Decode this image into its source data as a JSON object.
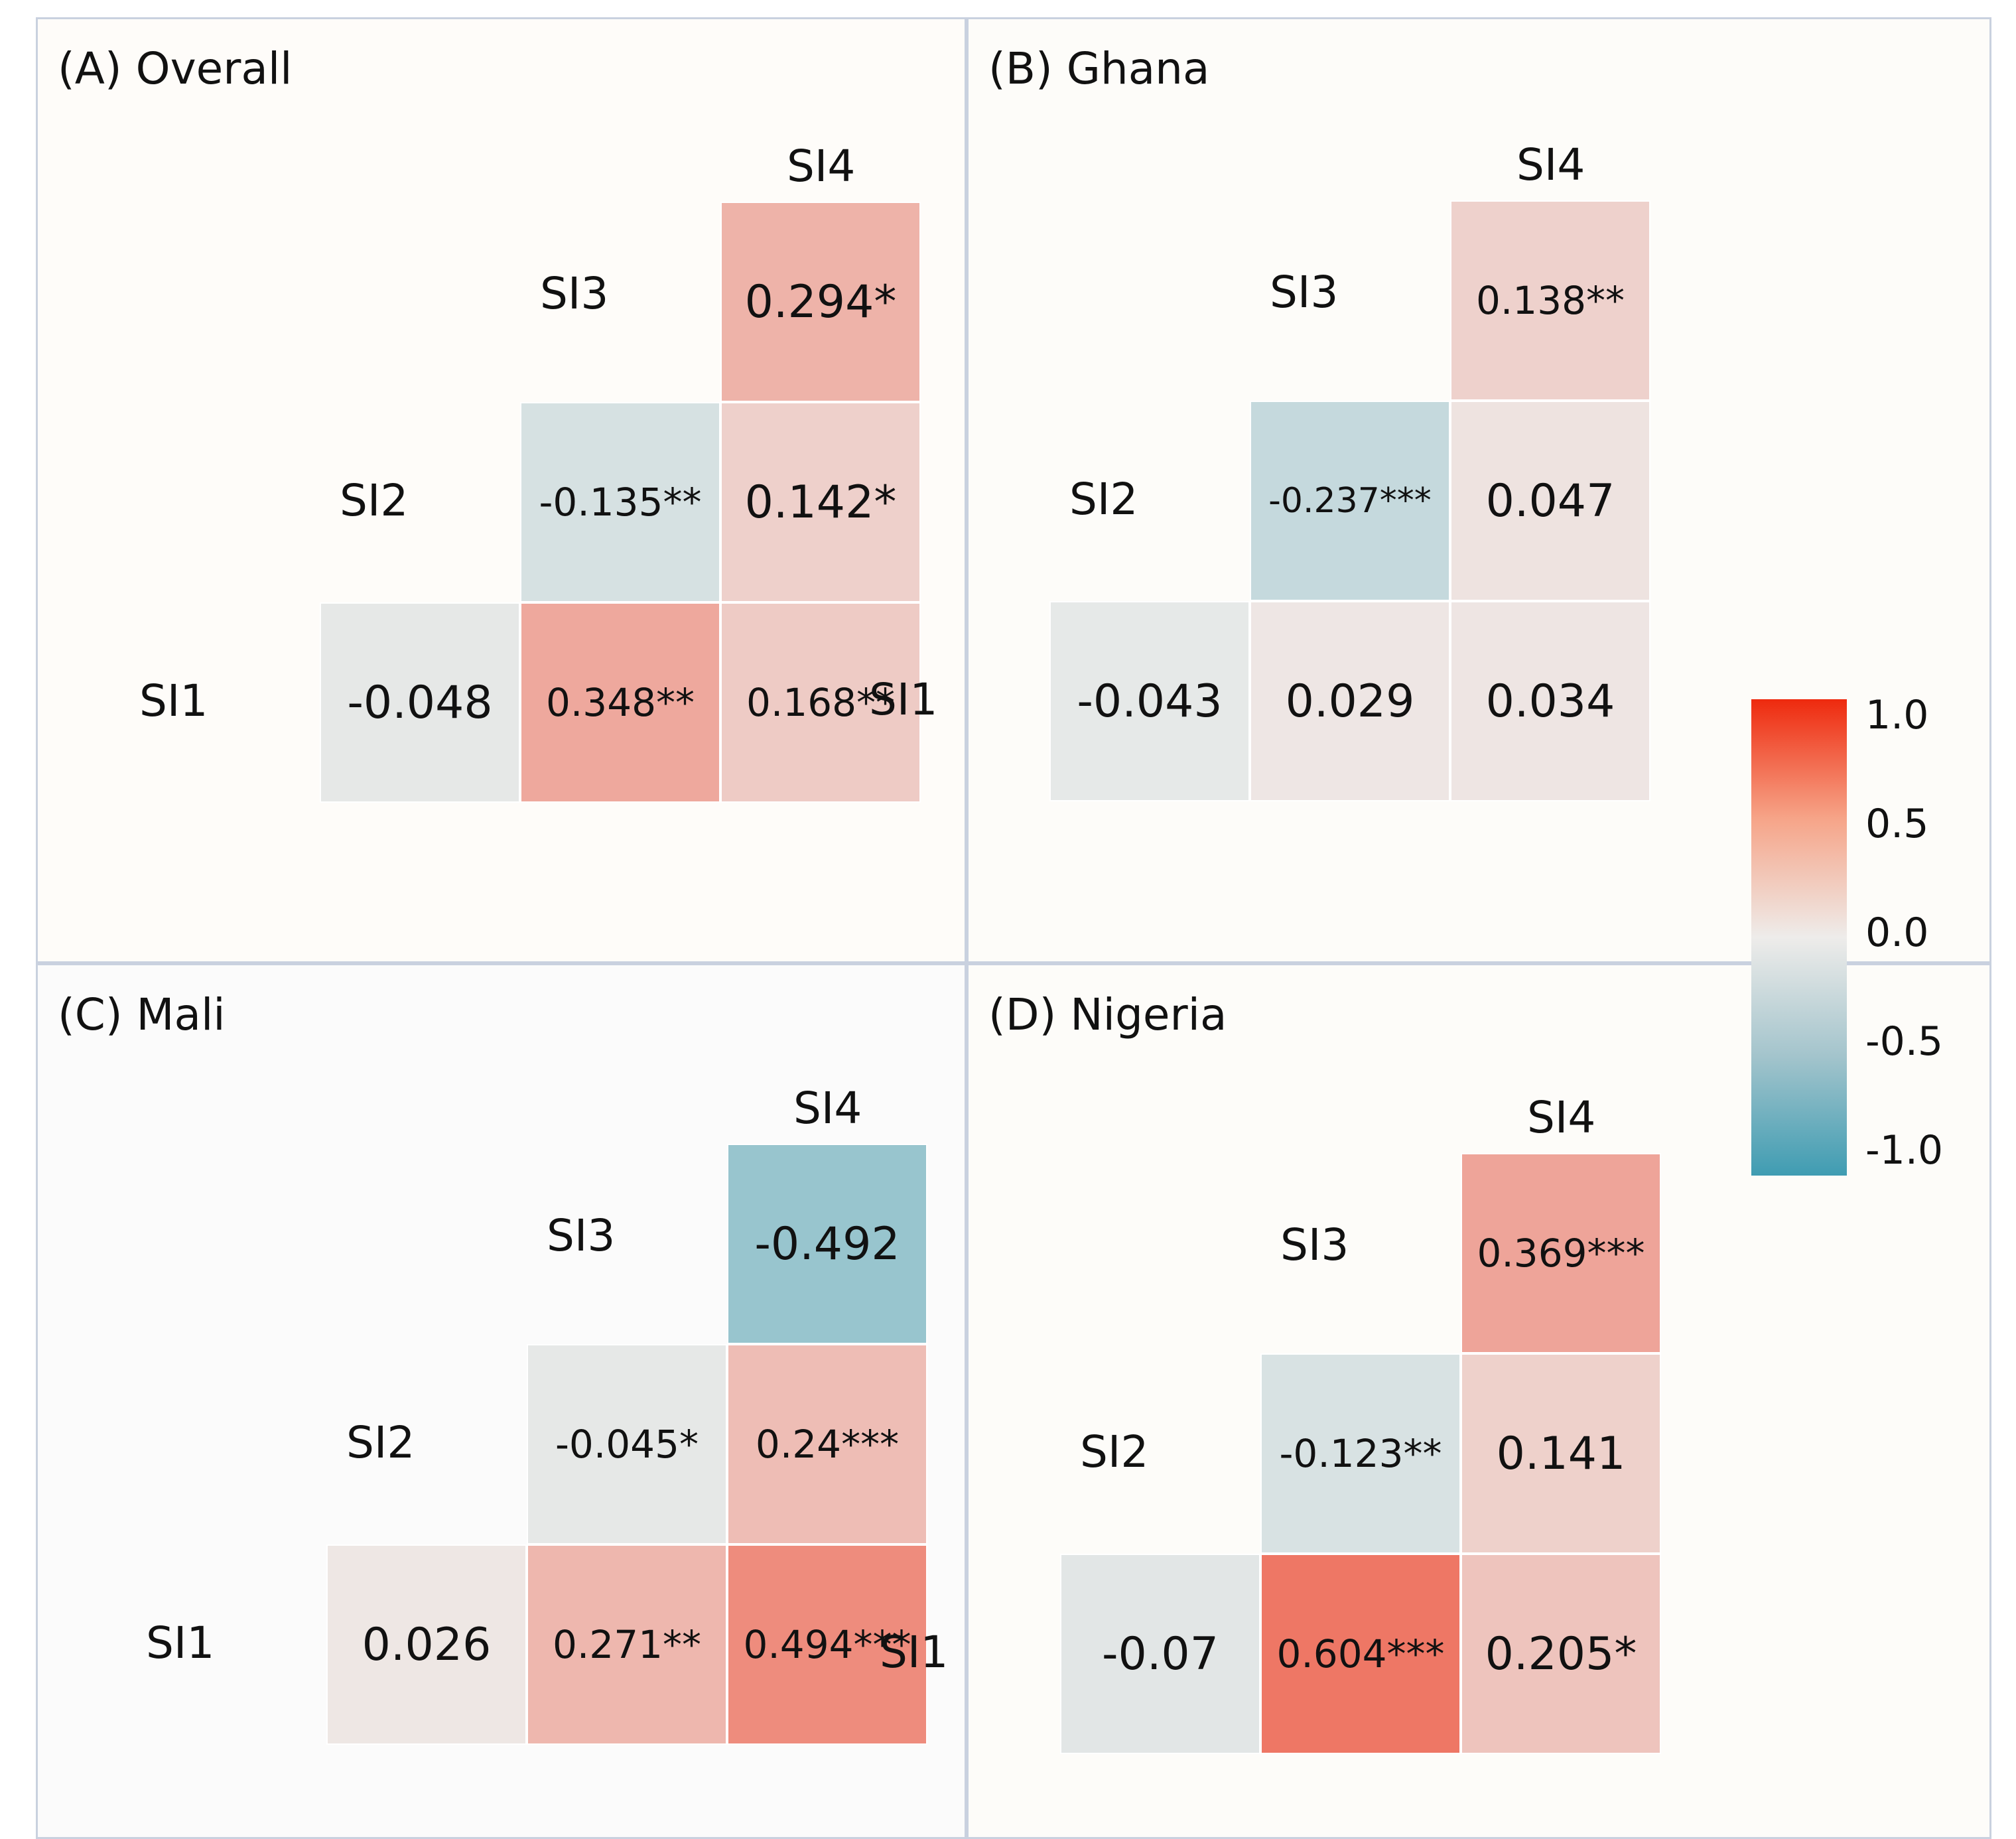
{
  "chart_data": [
    {
      "type": "heatmap",
      "title": "(A) Overall",
      "variables": [
        "SI1",
        "SI2",
        "SI3",
        "SI4"
      ],
      "cells": [
        {
          "row": "SI1",
          "col": "SI2",
          "value": -0.048,
          "label": "-0.048"
        },
        {
          "row": "SI1",
          "col": "SI3",
          "value": 0.348,
          "label": "0.348**"
        },
        {
          "row": "SI1",
          "col": "SI4",
          "value": 0.168,
          "label": "0.168**"
        },
        {
          "row": "SI2",
          "col": "SI3",
          "value": -0.135,
          "label": "-0.135**"
        },
        {
          "row": "SI2",
          "col": "SI4",
          "value": 0.142,
          "label": "0.142*"
        },
        {
          "row": "SI3",
          "col": "SI4",
          "value": 0.294,
          "label": "0.294*"
        }
      ]
    },
    {
      "type": "heatmap",
      "title": "(B) Ghana",
      "variables": [
        "SI1",
        "SI2",
        "SI3",
        "SI4"
      ],
      "cells": [
        {
          "row": "SI1",
          "col": "SI2",
          "value": -0.043,
          "label": "-0.043"
        },
        {
          "row": "SI1",
          "col": "SI3",
          "value": 0.029,
          "label": "0.029"
        },
        {
          "row": "SI1",
          "col": "SI4",
          "value": 0.034,
          "label": "0.034"
        },
        {
          "row": "SI2",
          "col": "SI3",
          "value": -0.237,
          "label": "-0.237***"
        },
        {
          "row": "SI2",
          "col": "SI4",
          "value": 0.047,
          "label": "0.047"
        },
        {
          "row": "SI3",
          "col": "SI4",
          "value": 0.138,
          "label": "0.138**"
        }
      ]
    },
    {
      "type": "heatmap",
      "title": "(C) Mali",
      "variables": [
        "SI1",
        "SI2",
        "SI3",
        "SI4"
      ],
      "cells": [
        {
          "row": "SI1",
          "col": "SI2",
          "value": 0.026,
          "label": "0.026"
        },
        {
          "row": "SI1",
          "col": "SI3",
          "value": 0.271,
          "label": "0.271**"
        },
        {
          "row": "SI1",
          "col": "SI4",
          "value": 0.494,
          "label": "0.494***"
        },
        {
          "row": "SI2",
          "col": "SI3",
          "value": -0.045,
          "label": "-0.045*"
        },
        {
          "row": "SI2",
          "col": "SI4",
          "value": 0.24,
          "label": "0.24***"
        },
        {
          "row": "SI3",
          "col": "SI4",
          "value": -0.492,
          "label": "-0.492"
        }
      ]
    },
    {
      "type": "heatmap",
      "title": "(D) Nigeria",
      "variables": [
        "SI1",
        "SI2",
        "SI3",
        "SI4"
      ],
      "cells": [
        {
          "row": "SI1",
          "col": "SI2",
          "value": -0.07,
          "label": "-0.07"
        },
        {
          "row": "SI1",
          "col": "SI3",
          "value": 0.604,
          "label": "0.604***"
        },
        {
          "row": "SI1",
          "col": "SI4",
          "value": 0.205,
          "label": "0.205*"
        },
        {
          "row": "SI2",
          "col": "SI3",
          "value": -0.123,
          "label": "-0.123**"
        },
        {
          "row": "SI2",
          "col": "SI4",
          "value": 0.141,
          "label": "0.141"
        },
        {
          "row": "SI3",
          "col": "SI4",
          "value": 0.369,
          "label": "0.369***"
        }
      ]
    }
  ],
  "colorbar": {
    "range": [
      -1.0,
      1.0
    ],
    "ticks": [
      "1.0",
      "0.5",
      "0.0",
      "-0.5",
      "-1.0"
    ],
    "colors": {
      "high": "#ee2a0e",
      "mid": "#eeecea",
      "low": "#3f9cb2"
    }
  }
}
